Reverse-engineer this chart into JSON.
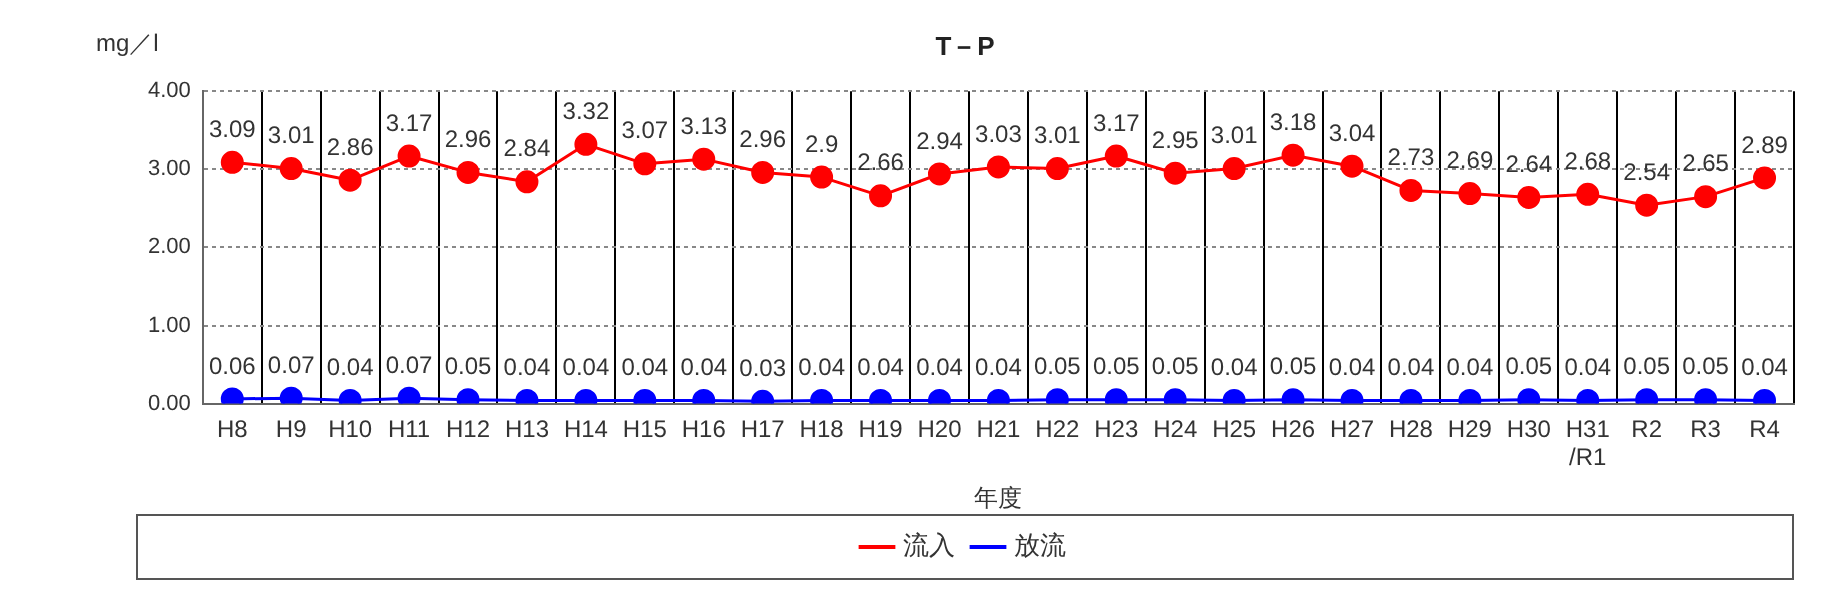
{
  "chart_data": {
    "type": "line",
    "title": "T－P",
    "ylabel": "mg／l",
    "xlabel": "年度",
    "categories": [
      "H8",
      "H9",
      "H10",
      "H11",
      "H12",
      "H13",
      "H14",
      "H15",
      "H16",
      "H17",
      "H18",
      "H19",
      "H20",
      "H21",
      "H22",
      "H23",
      "H24",
      "H25",
      "H26",
      "H27",
      "H28",
      "H29",
      "H30",
      "H31\n/R1",
      "R2",
      "R3",
      "R4"
    ],
    "series": [
      {
        "name": "流入",
        "color": "#ff0000",
        "values": [
          3.09,
          3.01,
          2.86,
          3.17,
          2.96,
          2.84,
          3.32,
          3.07,
          3.13,
          2.96,
          2.9,
          2.66,
          2.94,
          3.03,
          3.01,
          3.17,
          2.95,
          3.01,
          3.18,
          3.04,
          2.73,
          2.69,
          2.64,
          2.68,
          2.54,
          2.65,
          2.89
        ]
      },
      {
        "name": "放流",
        "color": "#0000ff",
        "values": [
          0.06,
          0.07,
          0.04,
          0.07,
          0.05,
          0.04,
          0.04,
          0.04,
          0.04,
          0.03,
          0.04,
          0.04,
          0.04,
          0.04,
          0.05,
          0.05,
          0.05,
          0.04,
          0.05,
          0.04,
          0.04,
          0.04,
          0.05,
          0.04,
          0.05,
          0.05,
          0.04
        ]
      }
    ],
    "ylim": [
      0,
      4
    ],
    "yticks": [
      {
        "value": 0,
        "label": "0.00"
      },
      {
        "value": 1,
        "label": "1.00"
      },
      {
        "value": 2,
        "label": "2.00"
      },
      {
        "value": 3,
        "label": "3.00"
      },
      {
        "value": 4,
        "label": "4.00"
      }
    ],
    "grid": true,
    "legend": "bottom",
    "marker": "circle",
    "line_style": "solid",
    "data_labels": true
  }
}
